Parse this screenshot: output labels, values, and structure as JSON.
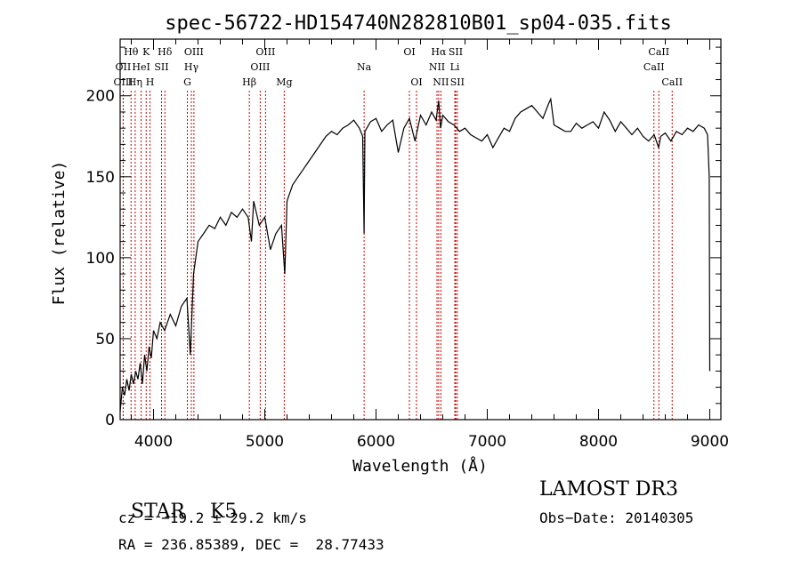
{
  "chart_data": {
    "type": "line",
    "title": "spec-56722-HD154740N282810B01_sp04-035.fits",
    "xlabel": "Wavelength (Å)",
    "ylabel": "Flux (relative)",
    "xlim": [
      3700,
      9100
    ],
    "ylim": [
      0,
      235
    ],
    "xticks": [
      4000,
      5000,
      6000,
      7000,
      8000,
      9000
    ],
    "yticks": [
      0,
      50,
      100,
      150,
      200
    ],
    "line_color": "#000000",
    "marker_color": "#cc0000",
    "series": [
      {
        "x": [
          3700,
          3720,
          3740,
          3760,
          3780,
          3800,
          3820,
          3840,
          3860,
          3880,
          3900,
          3920,
          3940,
          3960,
          3980,
          4000,
          4030,
          4060,
          4100,
          4150,
          4200,
          4250,
          4300,
          4330,
          4360,
          4400,
          4450,
          4500,
          4550,
          4600,
          4650,
          4700,
          4750,
          4800,
          4850,
          4880,
          4900,
          4950,
          5000,
          5050,
          5100,
          5150,
          5180,
          5200,
          5250,
          5300,
          5350,
          5400,
          5450,
          5500,
          5550,
          5600,
          5650,
          5700,
          5750,
          5800,
          5850,
          5880,
          5893,
          5900,
          5950,
          6000,
          6050,
          6100,
          6150,
          6200,
          6250,
          6300,
          6350,
          6400,
          6450,
          6500,
          6540,
          6563,
          6580,
          6600,
          6650,
          6700,
          6750,
          6800,
          6850,
          6900,
          6950,
          7000,
          7050,
          7100,
          7150,
          7200,
          7250,
          7300,
          7350,
          7400,
          7450,
          7500,
          7550,
          7570,
          7600,
          7650,
          7700,
          7750,
          7800,
          7850,
          7900,
          7950,
          8000,
          8050,
          8100,
          8150,
          8200,
          8250,
          8300,
          8350,
          8400,
          8450,
          8500,
          8540,
          8560,
          8600,
          8650,
          8700,
          8750,
          8800,
          8850,
          8900,
          8950,
          8980,
          8995,
          9000
        ],
        "y": [
          5,
          20,
          15,
          25,
          18,
          28,
          22,
          30,
          25,
          35,
          22,
          40,
          30,
          45,
          38,
          55,
          50,
          60,
          55,
          65,
          58,
          70,
          75,
          40,
          90,
          110,
          115,
          120,
          118,
          125,
          120,
          128,
          125,
          130,
          125,
          110,
          135,
          120,
          125,
          105,
          115,
          120,
          90,
          135,
          145,
          150,
          155,
          160,
          165,
          170,
          175,
          178,
          176,
          180,
          182,
          185,
          180,
          175,
          115,
          178,
          184,
          186,
          178,
          182,
          185,
          165,
          180,
          186,
          172,
          188,
          182,
          190,
          185,
          197,
          180,
          188,
          184,
          182,
          178,
          180,
          176,
          174,
          172,
          176,
          168,
          174,
          180,
          178,
          186,
          190,
          192,
          194,
          190,
          186,
          195,
          198,
          182,
          180,
          178,
          178,
          183,
          180,
          182,
          184,
          180,
          190,
          185,
          178,
          184,
          180,
          176,
          180,
          175,
          172,
          176,
          168,
          175,
          177,
          172,
          178,
          176,
          180,
          178,
          182,
          180,
          176,
          150,
          30
        ]
      }
    ],
    "lines": [
      {
        "label": "Hθ",
        "x": 3798,
        "row": 1
      },
      {
        "label": "OII",
        "x": 3727,
        "row": 2
      },
      {
        "label": "OIII",
        "x": 3728,
        "row": 3
      },
      {
        "label": "Hη",
        "x": 3835,
        "row": 3
      },
      {
        "label": "HeI",
        "x": 3889,
        "row": 2
      },
      {
        "label": "K",
        "x": 3934,
        "row": 1
      },
      {
        "label": "H",
        "x": 3968,
        "row": 3
      },
      {
        "label": "SII",
        "x": 4072,
        "row": 2
      },
      {
        "label": "Hδ",
        "x": 4102,
        "row": 1
      },
      {
        "label": "G",
        "x": 4304,
        "row": 3
      },
      {
        "label": "Hγ",
        "x": 4340,
        "row": 2
      },
      {
        "label": "OIII",
        "x": 4363,
        "row": 1
      },
      {
        "label": "Hβ",
        "x": 4861,
        "row": 3
      },
      {
        "label": "OIII",
        "x": 4959,
        "row": 2
      },
      {
        "label": "OIII",
        "x": 5007,
        "row": 1
      },
      {
        "label": "Mg",
        "x": 5175,
        "row": 3
      },
      {
        "label": "Na",
        "x": 5893,
        "row": 2
      },
      {
        "label": "OI",
        "x": 6300,
        "row": 1
      },
      {
        "label": "OI",
        "x": 6364,
        "row": 3
      },
      {
        "label": "NII",
        "x": 6548,
        "row": 2
      },
      {
        "label": "Hα",
        "x": 6563,
        "row": 1
      },
      {
        "label": "NII",
        "x": 6583,
        "row": 3
      },
      {
        "label": "Li",
        "x": 6708,
        "row": 2
      },
      {
        "label": "SII",
        "x": 6716,
        "row": 1
      },
      {
        "label": "SII",
        "x": 6731,
        "row": 3
      },
      {
        "label": "CaII",
        "x": 8498,
        "row": 2
      },
      {
        "label": "CaII",
        "x": 8542,
        "row": 1
      },
      {
        "label": "CaII",
        "x": 8662,
        "row": 3
      }
    ]
  },
  "info": {
    "class_label": "STAR",
    "subclass": "K5",
    "survey": "LAMOST DR3",
    "cz": "cz = −19.2 ± 29.2 km/s",
    "obs_date": "Obs−Date: 20140305",
    "coords": "RA = 236.85389, DEC =  28.77433"
  }
}
